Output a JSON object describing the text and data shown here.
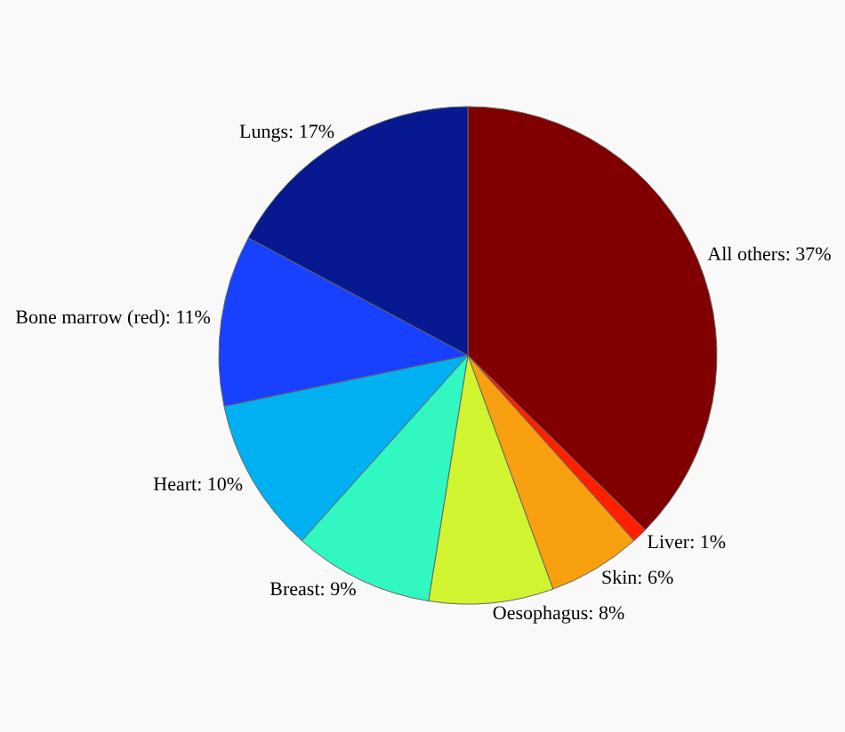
{
  "chart_data": {
    "type": "pie",
    "categories": [
      "All others",
      "Liver",
      "Skin",
      "Oesophagus",
      "Breast",
      "Heart",
      "Bone marrow (red)",
      "Lungs"
    ],
    "values": [
      37,
      1,
      6,
      8,
      9,
      10,
      11,
      17
    ],
    "value_labels": [
      "37%",
      "1%",
      "6%",
      "8%",
      "9%",
      "10%",
      "11%",
      "17%"
    ],
    "colors": [
      "#800000",
      "#ff2000",
      "#f8a010",
      "#d0f530",
      "#30f8c0",
      "#00b0f0",
      "#1840ff",
      "#081890"
    ]
  }
}
